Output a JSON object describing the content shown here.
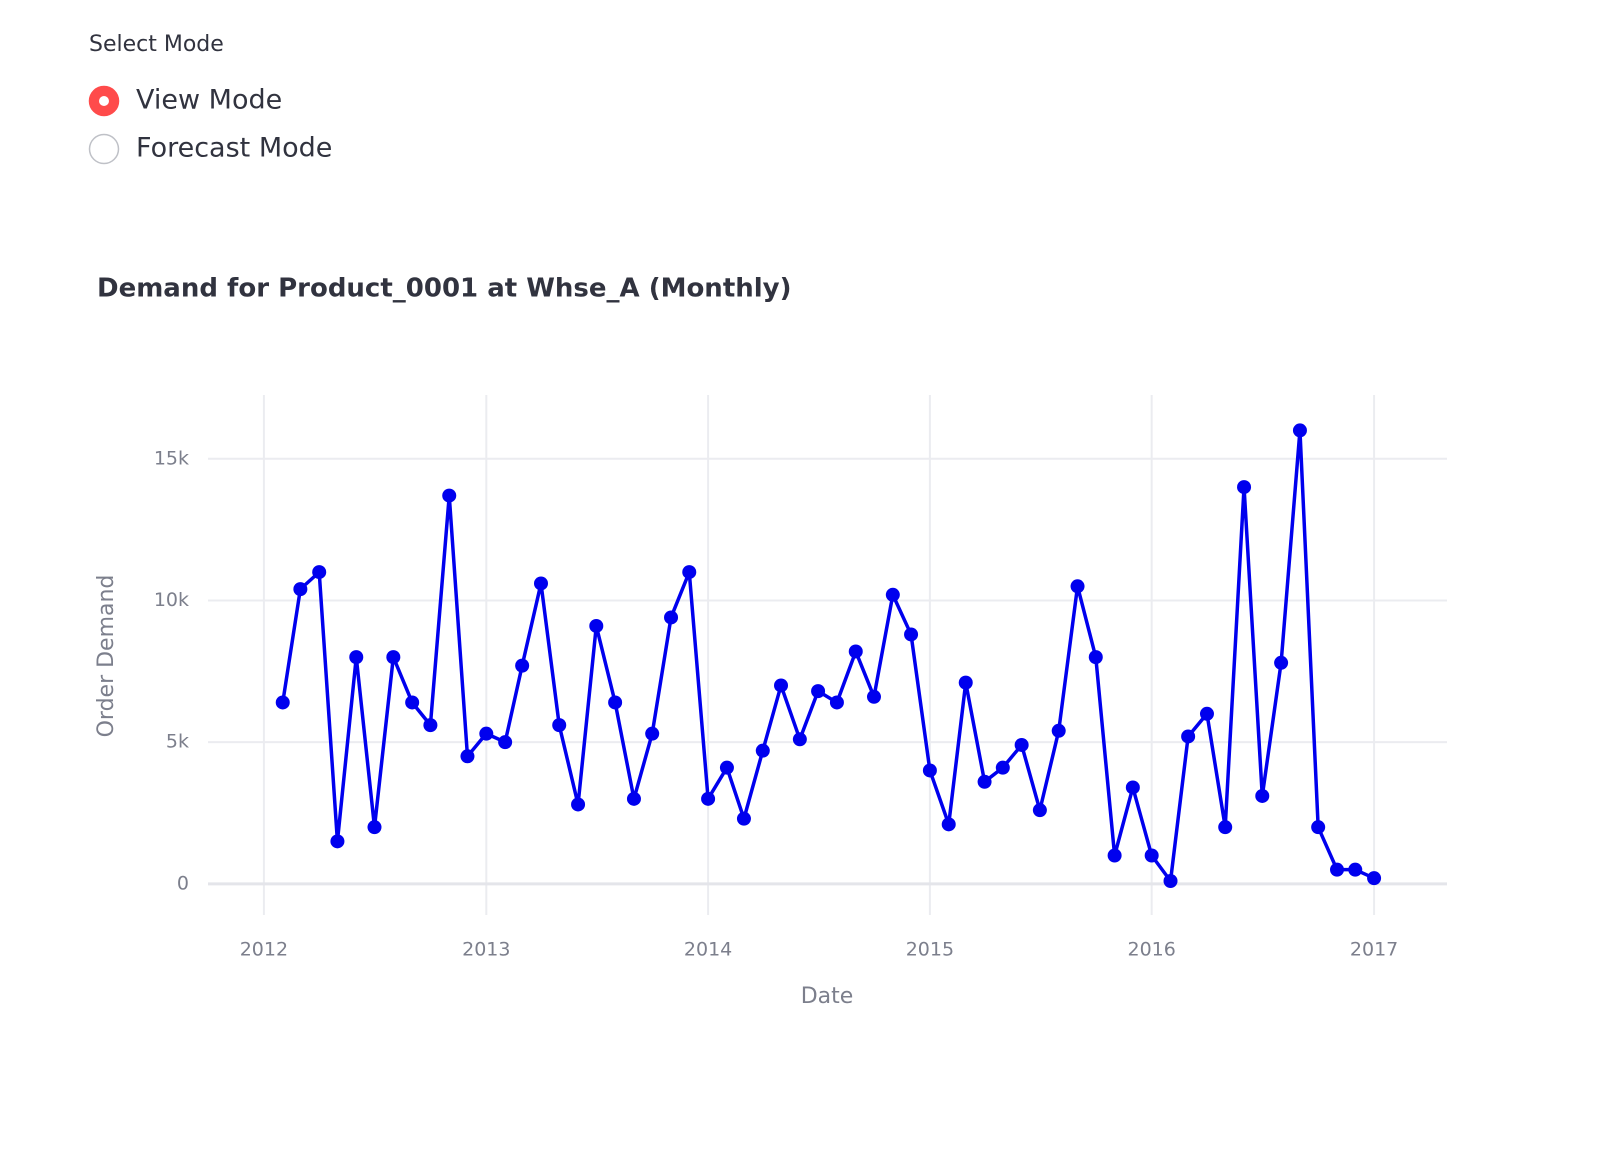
{
  "mode_select": {
    "label": "Select Mode",
    "options": [
      "View Mode",
      "Forecast Mode"
    ],
    "selected_index": 0
  },
  "chart_data": {
    "type": "line",
    "title": "Demand for Product_0001 at Whse_A (Monthly)",
    "x_label": "Date",
    "y_label": "Order Demand",
    "color": "#0000ee",
    "grid": true,
    "x": [
      "2012-02",
      "2012-03",
      "2012-04",
      "2012-05",
      "2012-06",
      "2012-07",
      "2012-08",
      "2012-09",
      "2012-10",
      "2012-11",
      "2012-12",
      "2013-01",
      "2013-02",
      "2013-03",
      "2013-04",
      "2013-05",
      "2013-06",
      "2013-07",
      "2013-08",
      "2013-09",
      "2013-10",
      "2013-11",
      "2013-12",
      "2014-01",
      "2014-02",
      "2014-03",
      "2014-04",
      "2014-05",
      "2014-06",
      "2014-07",
      "2014-08",
      "2014-09",
      "2014-10",
      "2014-11",
      "2014-12",
      "2015-01",
      "2015-02",
      "2015-03",
      "2015-04",
      "2015-05",
      "2015-06",
      "2015-07",
      "2015-08",
      "2015-09",
      "2015-10",
      "2015-11",
      "2015-12",
      "2016-01",
      "2016-02",
      "2016-03",
      "2016-04",
      "2016-05",
      "2016-06",
      "2016-07",
      "2016-08",
      "2016-09",
      "2016-10",
      "2016-11",
      "2016-12",
      "2017-01"
    ],
    "values": [
      6400,
      10400,
      11000,
      1500,
      8000,
      2000,
      8000,
      6400,
      5600,
      13700,
      4500,
      5300,
      5000,
      7700,
      10600,
      5600,
      2800,
      9100,
      6400,
      3000,
      5300,
      9400,
      11000,
      3000,
      4100,
      2300,
      4700,
      7000,
      5100,
      6800,
      6400,
      8200,
      6600,
      10200,
      8800,
      4000,
      2100,
      7100,
      3600,
      4100,
      4900,
      2600,
      5400,
      10500,
      8000,
      1000,
      3400,
      1000,
      100,
      5200,
      6000,
      2000,
      14000,
      3100,
      7800,
      16000,
      2000,
      500,
      500,
      200
    ],
    "xlim": [
      "2011-10",
      "2017-05"
    ],
    "xticks": [
      "2012",
      "2013",
      "2014",
      "2015",
      "2016",
      "2017"
    ],
    "ylim": [
      -1100,
      17250
    ],
    "yticks": [
      0,
      {
        "value": 5000,
        "label": "5k"
      },
      {
        "value": 10000,
        "label": "10k"
      },
      {
        "value": 15000,
        "label": "15k"
      }
    ]
  }
}
